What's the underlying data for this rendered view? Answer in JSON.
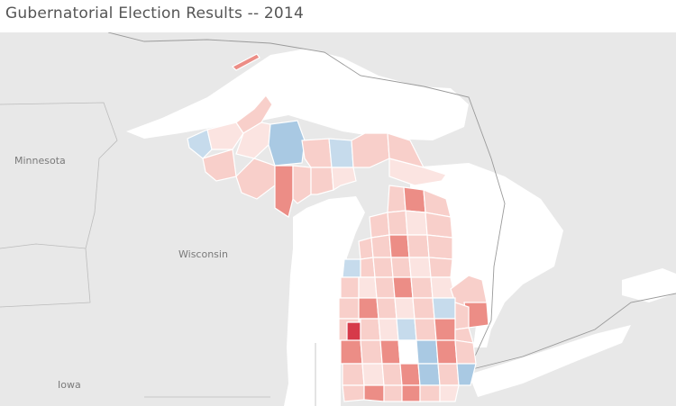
{
  "title": "Gubernatorial Election Results -- 2014",
  "labels": {
    "minnesota": "Minnesota",
    "wisconsin": "Wisconsin",
    "iowa": "Iowa"
  },
  "colors": {
    "water": "#ffffff",
    "land": "#e8e8e8",
    "deep_red": "#d63a4a",
    "red": "#ec8d86",
    "light_red": "#f8cfca",
    "pale_red": "#fbe4e1",
    "light_blue": "#c6dbec",
    "blue": "#a9c9e3"
  }
}
